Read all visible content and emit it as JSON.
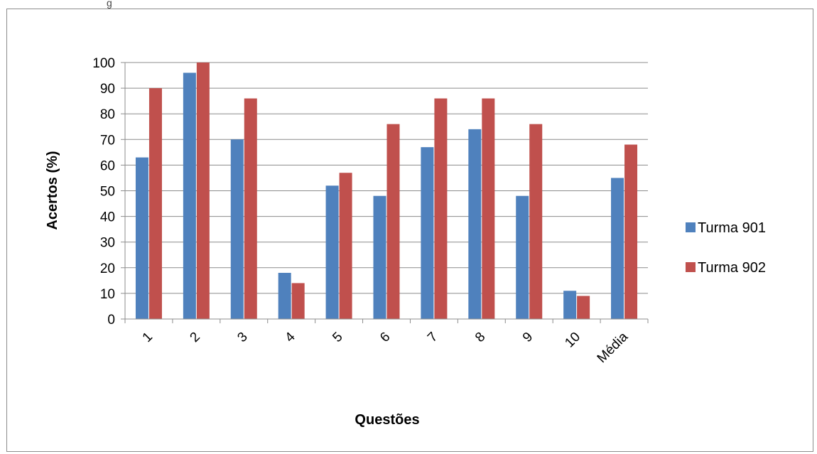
{
  "top_fragment": "g",
  "chart_data": {
    "type": "bar",
    "title": "",
    "xlabel": "Questões",
    "ylabel": "Acertos (%)",
    "ylim": [
      0,
      100
    ],
    "yticks": [
      "0",
      "10",
      "20",
      "30",
      "40",
      "50",
      "60",
      "70",
      "80",
      "90",
      "100"
    ],
    "grid": true,
    "legend_position": "right",
    "categories": [
      "1",
      "2",
      "3",
      "4",
      "5",
      "6",
      "7",
      "8",
      "9",
      "10",
      "Média"
    ],
    "series": [
      {
        "name": "Turma 901",
        "color": "#4f81bd",
        "values": [
          63,
          96,
          70,
          18,
          52,
          48,
          67,
          74,
          48,
          11,
          55
        ]
      },
      {
        "name": "Turma 902",
        "color": "#c0504d",
        "values": [
          90,
          100,
          86,
          14,
          57,
          76,
          86,
          86,
          76,
          9,
          68
        ]
      }
    ]
  }
}
